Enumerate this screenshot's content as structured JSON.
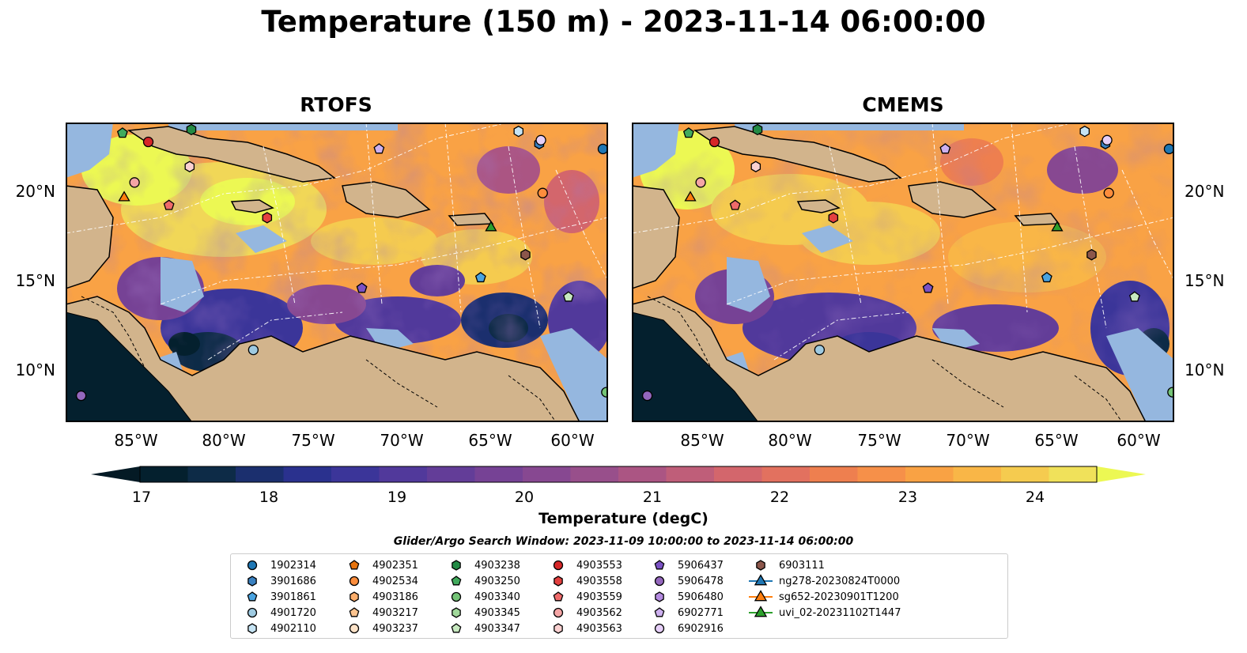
{
  "title": "Temperature (150 m) - 2023-11-14 06:00:00",
  "panels": [
    {
      "title": "RTOFS"
    },
    {
      "title": "CMEMS"
    }
  ],
  "lat_labels": [
    "20°N",
    "15°N",
    "10°N"
  ],
  "lon_labels": [
    "85°W",
    "80°W",
    "75°W",
    "70°W",
    "65°W",
    "60°W"
  ],
  "colorbar": {
    "label": "Temperature (degC)",
    "ticks": [
      "17",
      "18",
      "19",
      "20",
      "21",
      "22",
      "23",
      "24"
    ],
    "min": 16.75,
    "max": 24.5,
    "colors": [
      "#04202e",
      "#0d2b47",
      "#1b2f6e",
      "#2a318e",
      "#3b3599",
      "#51399b",
      "#633d98",
      "#764295",
      "#874891",
      "#984f8b",
      "#ab5583",
      "#bf5e79",
      "#d3666c",
      "#e2715f",
      "#ee7f4f",
      "#f69049",
      "#f9a244",
      "#f9b647",
      "#f5cb4f",
      "#f0e15a"
    ],
    "under_color": "#041a25",
    "over_color": "#ecf853"
  },
  "search_window": "Glider/Argo Search Window: 2023-11-09 10:00:00 to 2023-11-14 06:00:00",
  "colors": {
    "ocean_warm": "#f9a245",
    "land": "#d2b48c",
    "shelf": "#95b7df",
    "pacific": "#04202e"
  },
  "legend": [
    {
      "label": "1902314",
      "marker": "circle",
      "color": "#1f77b4"
    },
    {
      "label": "3901686",
      "marker": "hexagon",
      "color": "#3a81c1"
    },
    {
      "label": "3901861",
      "marker": "pentagon",
      "color": "#4aa3e0"
    },
    {
      "label": "4901720",
      "marker": "circle",
      "color": "#9ecae1"
    },
    {
      "label": "4902110",
      "marker": "hexagon",
      "color": "#c6e4f4"
    },
    {
      "label": "4902351",
      "marker": "pentagon",
      "color": "#e6730d"
    },
    {
      "label": "4902534",
      "marker": "circle",
      "color": "#fd8d3c"
    },
    {
      "label": "4903186",
      "marker": "hexagon",
      "color": "#fdae6b"
    },
    {
      "label": "4903217",
      "marker": "pentagon",
      "color": "#fdc48f"
    },
    {
      "label": "4903237",
      "marker": "circle",
      "color": "#fde3c8"
    },
    {
      "label": "4903238",
      "marker": "hexagon",
      "color": "#238b45"
    },
    {
      "label": "4903250",
      "marker": "pentagon",
      "color": "#41ab5d"
    },
    {
      "label": "4903340",
      "marker": "circle",
      "color": "#74c476"
    },
    {
      "label": "4903345",
      "marker": "hexagon",
      "color": "#a1d99b"
    },
    {
      "label": "4903347",
      "marker": "pentagon",
      "color": "#c7e9c0"
    },
    {
      "label": "4903553",
      "marker": "circle",
      "color": "#d62728"
    },
    {
      "label": "4903558",
      "marker": "hexagon",
      "color": "#e3403f"
    },
    {
      "label": "4903559",
      "marker": "pentagon",
      "color": "#ef6a6a"
    },
    {
      "label": "4903562",
      "marker": "circle",
      "color": "#f4a5a5"
    },
    {
      "label": "4903563",
      "marker": "hexagon",
      "color": "#fad1d1"
    },
    {
      "label": "5906437",
      "marker": "pentagon",
      "color": "#7b52c4"
    },
    {
      "label": "5906478",
      "marker": "circle",
      "color": "#9467bd"
    },
    {
      "label": "5906480",
      "marker": "hexagon",
      "color": "#b48ae0"
    },
    {
      "label": "6902771",
      "marker": "pentagon",
      "color": "#cdb0ef"
    },
    {
      "label": "6902916",
      "marker": "circle",
      "color": "#e6cff8"
    },
    {
      "label": "6903111",
      "marker": "hexagon",
      "color": "#8c564b"
    },
    {
      "label": "ng278-20230824T0000",
      "marker": "triangle-line",
      "color": "#1f77b4"
    },
    {
      "label": "sg652-20230901T1200",
      "marker": "triangle-line",
      "color": "#ff7f0e"
    },
    {
      "label": "uvi_02-20231102T1447",
      "marker": "triangle-line",
      "color": "#2ca02c"
    }
  ],
  "float_positions": [
    {
      "id": "1902314",
      "lon": -58.3,
      "lat": 22.5
    },
    {
      "id": "3901686",
      "lon": -62.0,
      "lat": 22.8
    },
    {
      "id": "3901861",
      "lon": -65.4,
      "lat": 15.2
    },
    {
      "id": "4901720",
      "lon": -78.6,
      "lat": 11.1
    },
    {
      "id": "4902110",
      "lon": -63.2,
      "lat": 23.5
    },
    {
      "id": "4902534",
      "lon": -61.8,
      "lat": 20.0
    },
    {
      "id": "4903238",
      "lon": -82.2,
      "lat": 23.6
    },
    {
      "id": "4903250",
      "lon": -86.2,
      "lat": 23.4
    },
    {
      "id": "4903340",
      "lon": -58.1,
      "lat": 8.7
    },
    {
      "id": "4903347",
      "lon": -60.3,
      "lat": 14.1
    },
    {
      "id": "4903553",
      "lon": -84.7,
      "lat": 22.9
    },
    {
      "id": "4903558",
      "lon": -77.8,
      "lat": 18.6
    },
    {
      "id": "4903559",
      "lon": -83.5,
      "lat": 19.3
    },
    {
      "id": "4903562",
      "lon": -85.5,
      "lat": 20.6
    },
    {
      "id": "4903563",
      "lon": -82.3,
      "lat": 21.5
    },
    {
      "id": "5906437",
      "lon": -72.3,
      "lat": 14.6
    },
    {
      "id": "5906478",
      "lon": -88.6,
      "lat": 8.5
    },
    {
      "id": "6902771",
      "lon": -71.3,
      "lat": 22.5
    },
    {
      "id": "6902916",
      "lon": -61.9,
      "lat": 23.0
    },
    {
      "id": "6903111",
      "lon": -62.8,
      "lat": 16.5
    },
    {
      "id": "sg652-20230901T1200",
      "lon": -86.1,
      "lat": 19.8
    },
    {
      "id": "uvi_02-20231102T1447",
      "lon": -64.8,
      "lat": 18.1
    }
  ]
}
